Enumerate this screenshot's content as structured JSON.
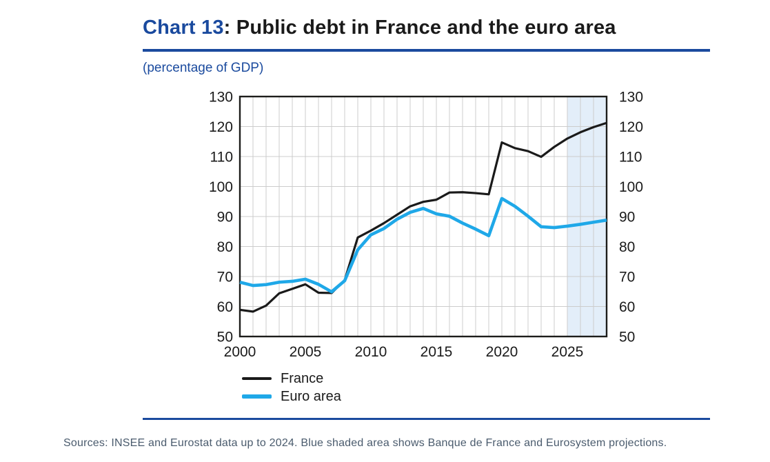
{
  "header": {
    "chart_label": "Chart 13",
    "title_rest": ": Public debt in France and the euro area",
    "subtitle": "(percentage of GDP)"
  },
  "colors": {
    "accent_blue": "#1a4a9e",
    "france_line": "#1a1a1a",
    "euro_area_line": "#1fa8e8",
    "projection_shading": "#e3eef9",
    "grid": "#cccccc",
    "frame": "#1d1d1b",
    "caption_text": "#4a5b6d"
  },
  "chart_data": {
    "type": "line",
    "title": "Chart 13: Public debt in France and the euro area",
    "subtitle": "(percentage of GDP)",
    "xlabel": "",
    "ylabel": "percentage of GDP",
    "xlim": [
      2000,
      2028
    ],
    "ylim": [
      50,
      130
    ],
    "x_ticks": [
      2000,
      2005,
      2010,
      2015,
      2020,
      2025
    ],
    "y_ticks": [
      50,
      60,
      70,
      80,
      90,
      100,
      110,
      120,
      130
    ],
    "grid": true,
    "legend_position": "bottom-left",
    "projection_region": {
      "from": 2025,
      "to": 2028,
      "note": "Blue shaded area shows projections"
    },
    "x": [
      2000,
      2001,
      2002,
      2003,
      2004,
      2005,
      2006,
      2007,
      2008,
      2009,
      2010,
      2011,
      2012,
      2013,
      2014,
      2015,
      2016,
      2017,
      2018,
      2019,
      2020,
      2021,
      2022,
      2023,
      2024,
      2025,
      2026,
      2027,
      2028
    ],
    "series": [
      {
        "name": "France",
        "color": "#1a1a1a",
        "width": 3.2,
        "values": [
          58.9,
          58.3,
          60.3,
          64.4,
          65.9,
          67.4,
          64.6,
          64.5,
          68.8,
          83.0,
          85.3,
          87.8,
          90.6,
          93.4,
          94.9,
          95.6,
          98.0,
          98.1,
          97.8,
          97.4,
          114.7,
          112.8,
          111.8,
          109.9,
          113.2,
          116.0,
          118.1,
          119.8,
          121.2
        ]
      },
      {
        "name": "Euro area",
        "color": "#1fa8e8",
        "width": 4.6,
        "values": [
          68.1,
          67.0,
          67.3,
          68.1,
          68.4,
          69.1,
          67.4,
          64.9,
          68.6,
          78.9,
          83.9,
          86.0,
          89.1,
          91.4,
          92.7,
          90.9,
          90.1,
          87.8,
          85.8,
          83.6,
          96.0,
          93.4,
          90.1,
          86.6,
          86.3,
          86.8,
          87.4,
          88.1,
          88.8
        ]
      }
    ]
  },
  "caption": {
    "text": "Sources: INSEE and Eurostat data up to 2024. Blue shaded area shows Banque de France and Eurosystem projections."
  }
}
